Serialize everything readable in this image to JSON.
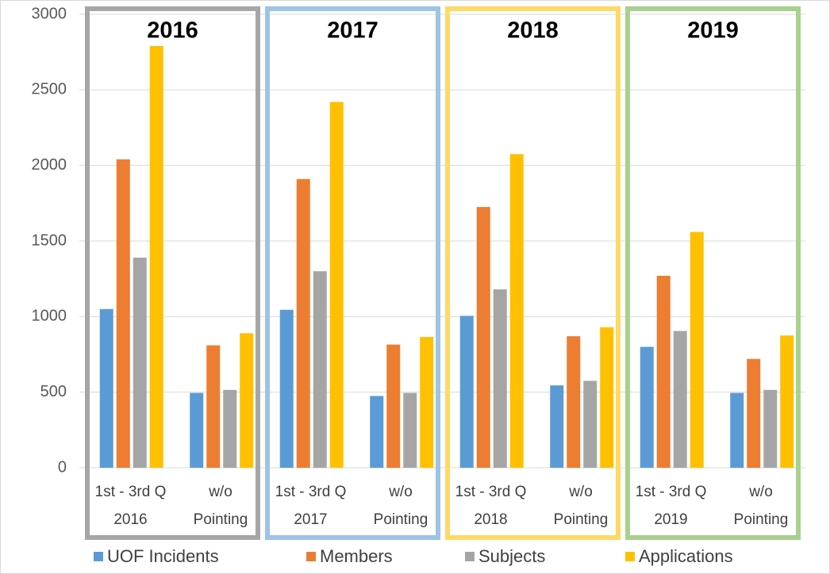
{
  "chart_data": {
    "type": "bar",
    "categories": [
      "1st - 3rd Q\n2016",
      "w/o\nPointing",
      "1st - 3rd Q\n2017",
      "w/o\nPointing",
      "1st - 3rd Q\n2018",
      "w/o\nPointing",
      "1st - 3rd Q\n2019",
      "w/o\nPointing"
    ],
    "series": [
      {
        "name": "UOF Incidents",
        "color": "#5b9bd5",
        "values": [
          1050,
          495,
          1045,
          475,
          1005,
          545,
          800,
          495
        ]
      },
      {
        "name": "Members",
        "color": "#ed7d31",
        "values": [
          2040,
          810,
          1910,
          815,
          1725,
          870,
          1270,
          720
        ]
      },
      {
        "name": "Subjects",
        "color": "#a5a5a5",
        "values": [
          1390,
          515,
          1300,
          495,
          1180,
          575,
          905,
          515
        ]
      },
      {
        "name": "Applications",
        "color": "#ffc000",
        "values": [
          2790,
          890,
          2420,
          865,
          2075,
          930,
          1560,
          875
        ]
      }
    ],
    "year_groups": [
      {
        "label": "2016",
        "color": "#a6a6a6"
      },
      {
        "label": "2017",
        "color": "#9dc3e6"
      },
      {
        "label": "2018",
        "color": "#ffd966"
      },
      {
        "label": "2019",
        "color": "#a9d18e"
      }
    ],
    "ylim": [
      0,
      3000
    ],
    "yticks": [
      0,
      500,
      1000,
      1500,
      2000,
      2500,
      3000
    ],
    "grid": true,
    "legend": "bottom"
  }
}
